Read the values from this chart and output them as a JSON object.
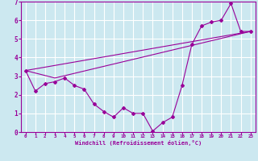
{
  "line1_x": [
    0,
    1,
    2,
    3,
    4,
    5,
    6,
    7,
    8,
    9,
    10,
    11,
    12,
    13,
    14,
    15,
    16,
    17,
    18,
    19,
    20,
    21,
    22,
    23
  ],
  "line1_y": [
    3.3,
    2.2,
    2.6,
    2.7,
    2.9,
    2.5,
    2.3,
    1.5,
    1.1,
    0.8,
    1.3,
    1.0,
    1.0,
    0.05,
    0.5,
    0.8,
    2.5,
    4.7,
    5.7,
    5.9,
    6.0,
    6.9,
    5.4,
    5.4
  ],
  "line2_x": [
    0,
    23
  ],
  "line2_y": [
    3.3,
    5.4
  ],
  "line3_x": [
    0,
    3,
    23
  ],
  "line3_y": [
    3.3,
    2.9,
    5.4
  ],
  "color": "#990099",
  "bg_color": "#cce8f0",
  "grid_color": "#ffffff",
  "xlabel": "Windchill (Refroidissement éolien,°C)",
  "xlim": [
    -0.5,
    23.5
  ],
  "ylim": [
    0,
    7
  ],
  "xticks": [
    0,
    1,
    2,
    3,
    4,
    5,
    6,
    7,
    8,
    9,
    10,
    11,
    12,
    13,
    14,
    15,
    16,
    17,
    18,
    19,
    20,
    21,
    22,
    23
  ],
  "yticks": [
    0,
    1,
    2,
    3,
    4,
    5,
    6,
    7
  ]
}
